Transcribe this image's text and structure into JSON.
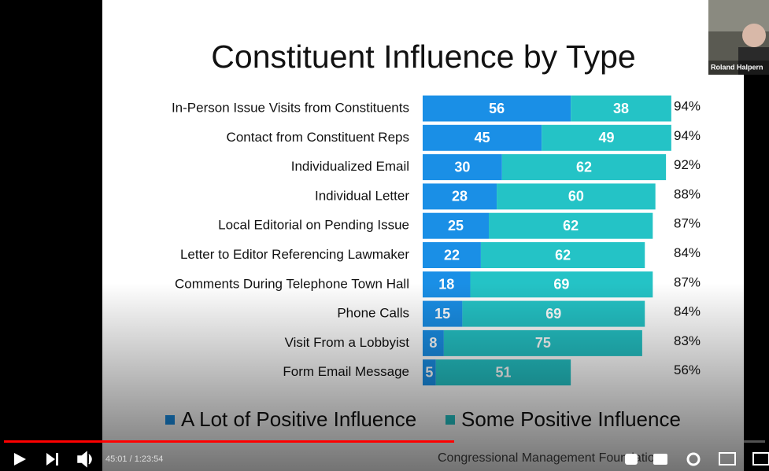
{
  "chart_data": {
    "type": "stacked_bar_horizontal",
    "title": "Constituent Influence by Type",
    "categories": [
      "In-Person Issue Visits from Constituents",
      "Contact from Constituent Reps",
      "Individualized Email",
      "Individual Letter",
      "Local Editorial on Pending Issue",
      "Letter to Editor Referencing Lawmaker",
      "Comments During Telephone Town Hall",
      "Phone Calls",
      "Visit From a Lobbyist",
      "Form Email Message"
    ],
    "series": [
      {
        "name": "A Lot of Positive Influence",
        "color": "#1a8fe6",
        "values": [
          56,
          45,
          30,
          28,
          25,
          22,
          18,
          15,
          8,
          5
        ]
      },
      {
        "name": "Some Positive Influence",
        "color": "#24c3c6",
        "values": [
          38,
          49,
          62,
          60,
          62,
          62,
          69,
          69,
          75,
          51
        ]
      }
    ],
    "totals": [
      94,
      94,
      92,
      88,
      87,
      84,
      87,
      84,
      83,
      56
    ],
    "total_labels": [
      "94%",
      "94%",
      "92%",
      "88%",
      "87%",
      "84%",
      "87%",
      "84%",
      "83%",
      "56%"
    ],
    "legend": "bottom"
  },
  "player": {
    "time": "45:01 / 1:23:54",
    "presenter": "Roland Halpern",
    "footer": "Congressional Management Foundation"
  }
}
